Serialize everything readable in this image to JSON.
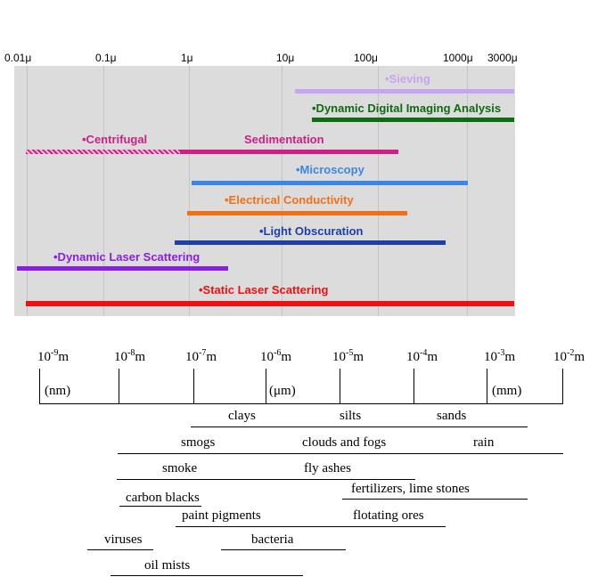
{
  "technique_chart": {
    "axis_ticks": [
      "0.01μ",
      "0.1μ",
      "1μ",
      "10μ",
      "100μ",
      "1000μ",
      "3000μ"
    ],
    "ranges": [
      {
        "label": "•Sieving",
        "color": "#c5a6ee"
      },
      {
        "label": "•Dynamic Digital Imaging Analysis",
        "color": "#0e6b12"
      },
      {
        "label": "•Centrifugal",
        "color": "#cf1f86",
        "hatched_color": "#e39ac4"
      },
      {
        "label": "Sedimentation",
        "color": "#cf1f86"
      },
      {
        "label": "•Microscopy",
        "color": "#3e86e6"
      },
      {
        "label": "•Electrical Conductivity",
        "color": "#f07018"
      },
      {
        "label": "•Light Obscuration",
        "color": "#1f3ea6"
      },
      {
        "label": "•Dynamic Laser Scattering",
        "color": "#8a1ee6"
      },
      {
        "label": "•Static Laser Scattering",
        "color": "#ee1111"
      }
    ]
  },
  "scale_chart": {
    "meter_ticks": [
      {
        "base": "10",
        "exp": "-9",
        "unit": "m"
      },
      {
        "base": "10",
        "exp": "-8",
        "unit": "m"
      },
      {
        "base": "10",
        "exp": "-7",
        "unit": "m"
      },
      {
        "base": "10",
        "exp": "-6",
        "unit": "m"
      },
      {
        "base": "10",
        "exp": "-5",
        "unit": "m"
      },
      {
        "base": "10",
        "exp": "-4",
        "unit": "m"
      },
      {
        "base": "10",
        "exp": "-3",
        "unit": "m"
      },
      {
        "base": "10",
        "exp": "-2",
        "unit": "m"
      }
    ],
    "unit_labels": [
      "(nm)",
      "(μm)",
      "(mm)"
    ],
    "particles": [
      "clays",
      "silts",
      "sands",
      "smogs",
      "clouds and fogs",
      "rain",
      "smoke",
      "fly ashes",
      "carbon blacks",
      "fertilizers, lime stones",
      "paint pigments",
      "flotating ores",
      "viruses",
      "bacteria",
      "oil mists"
    ]
  }
}
